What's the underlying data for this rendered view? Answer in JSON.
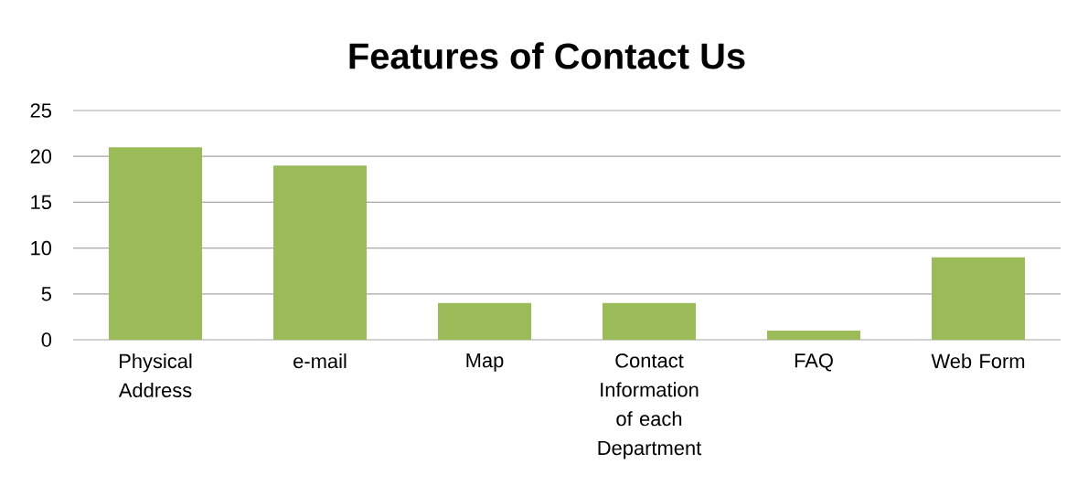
{
  "chart_data": {
    "type": "bar",
    "title": "Features of Contact Us",
    "categories": [
      "Physical Address",
      "e-mail",
      "Map",
      "Contact Information of each Department",
      "FAQ",
      "Web Form"
    ],
    "values": [
      21,
      19,
      4,
      4,
      1,
      9
    ],
    "color": "#9bbb59",
    "ylim": [
      0,
      25
    ],
    "yticks": [
      0,
      5,
      10,
      15,
      20,
      25
    ],
    "grid": "y"
  }
}
